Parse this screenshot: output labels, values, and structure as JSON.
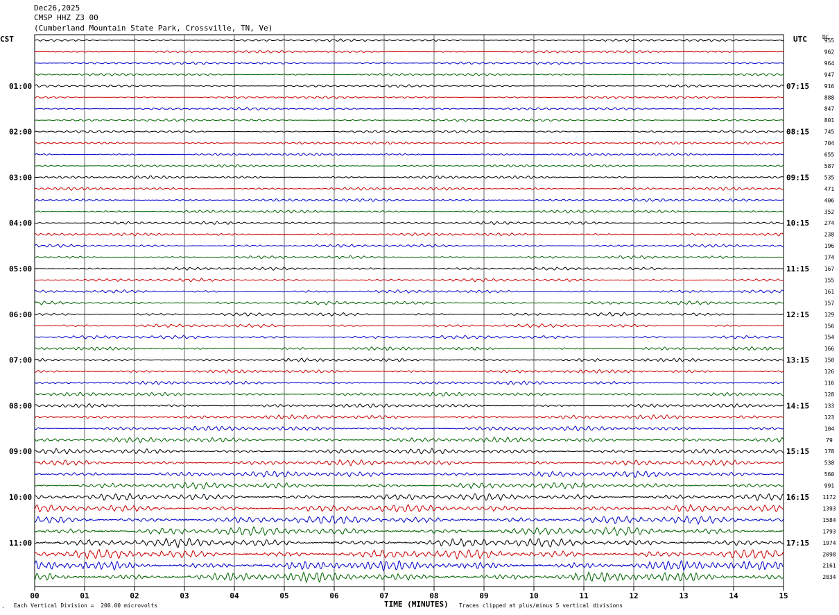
{
  "header": {
    "date": "Dec26,2025",
    "station": "CMSP HHZ Z3 00",
    "location": "(Cumberland Mountain State Park, Crossville, TN, Ve)"
  },
  "left_zone": "CST",
  "right_zone": "UTC",
  "dc_label": "DC",
  "footer": {
    "scale_note": "Each Vertical Division =  200.00 microvolts",
    "xlabel": "TIME (MINUTES)",
    "clip_note": "Traces clipped at plus/minus 5 vertical divisions"
  },
  "chart_data": {
    "type": "line",
    "xlabel": "TIME (MINUTES)",
    "xlim": [
      0,
      15
    ],
    "x_ticks": [
      "00",
      "01",
      "02",
      "03",
      "04",
      "05",
      "06",
      "07",
      "08",
      "09",
      "10",
      "11",
      "12",
      "13",
      "14",
      "15"
    ],
    "trace_colors": [
      "#000000",
      "#cc0000",
      "#0000cc",
      "#006400"
    ],
    "grid": true,
    "left_time_labels": [
      "01:00",
      "02:00",
      "03:00",
      "04:00",
      "05:00",
      "06:00",
      "07:00",
      "08:00",
      "09:00",
      "10:00",
      "11:00"
    ],
    "right_time_labels": [
      "07:15",
      "08:15",
      "09:15",
      "10:15",
      "11:15",
      "12:15",
      "13:15",
      "14:15",
      "15:15",
      "16:15",
      "17:15"
    ],
    "dc_offsets": [
      955,
      962,
      964,
      947,
      916,
      888,
      847,
      801,
      745,
      704,
      655,
      587,
      535,
      471,
      406,
      352,
      274,
      238,
      196,
      174,
      167,
      155,
      161,
      157,
      129,
      156,
      154,
      166,
      150,
      126,
      116,
      128,
      133,
      123,
      104,
      79,
      178,
      538,
      560,
      991,
      1172,
      1393,
      1584,
      1793,
      1974,
      2098,
      2161,
      2034
    ],
    "trace_amplitude_divisions": [
      0.6,
      0.6,
      0.6,
      0.6,
      0.6,
      0.6,
      0.6,
      0.6,
      0.6,
      0.6,
      0.6,
      0.6,
      0.7,
      0.7,
      0.7,
      0.7,
      0.7,
      0.7,
      0.7,
      0.7,
      0.7,
      0.7,
      0.7,
      0.8,
      0.8,
      0.8,
      0.8,
      0.8,
      0.8,
      0.8,
      0.8,
      0.9,
      0.9,
      1.0,
      1.1,
      1.2,
      1.2,
      1.3,
      1.4,
      1.5,
      1.6,
      1.7,
      1.9,
      2.0,
      2.1,
      2.2,
      2.3,
      2.3
    ]
  }
}
